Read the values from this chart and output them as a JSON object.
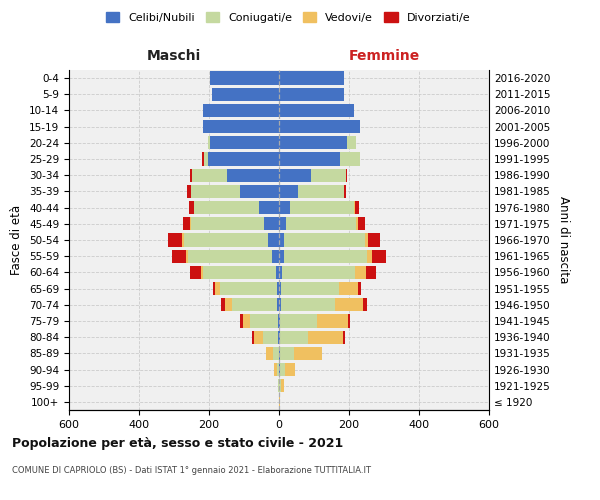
{
  "age_groups": [
    "100+",
    "95-99",
    "90-94",
    "85-89",
    "80-84",
    "75-79",
    "70-74",
    "65-69",
    "60-64",
    "55-59",
    "50-54",
    "45-49",
    "40-44",
    "35-39",
    "30-34",
    "25-29",
    "20-24",
    "15-19",
    "10-14",
    "5-9",
    "0-4"
  ],
  "birth_years": [
    "≤ 1920",
    "1921-1925",
    "1926-1930",
    "1931-1935",
    "1936-1940",
    "1941-1945",
    "1946-1950",
    "1951-1955",
    "1956-1960",
    "1961-1965",
    "1966-1970",
    "1971-1975",
    "1976-1980",
    "1981-1985",
    "1986-1990",
    "1991-1995",
    "1996-2000",
    "2001-2005",
    "2006-2010",
    "2011-2015",
    "2016-2020"
  ],
  "colors": {
    "celibi": "#4472C4",
    "coniugati": "#c5d9a0",
    "vedovi": "#f0c060",
    "divorziati": "#cc1111"
  },
  "male_celibi": [
    0,
    0,
    0,
    0,
    2,
    3,
    5,
    5,
    8,
    20,
    32,
    42,
    58,
    112,
    148,
    202,
    196,
    218,
    216,
    191,
    196
  ],
  "male_coniugati": [
    0,
    2,
    5,
    18,
    45,
    80,
    130,
    165,
    210,
    240,
    240,
    210,
    185,
    140,
    100,
    12,
    8,
    0,
    0,
    0,
    0
  ],
  "male_vedovi": [
    0,
    2,
    8,
    18,
    25,
    20,
    20,
    12,
    5,
    5,
    5,
    2,
    0,
    0,
    0,
    0,
    0,
    0,
    0,
    0,
    0
  ],
  "male_divorziati": [
    0,
    0,
    0,
    2,
    5,
    8,
    10,
    8,
    30,
    40,
    40,
    20,
    15,
    10,
    5,
    5,
    0,
    0,
    0,
    0,
    0
  ],
  "female_celibi": [
    0,
    0,
    2,
    2,
    3,
    3,
    5,
    5,
    8,
    15,
    15,
    20,
    30,
    55,
    90,
    175,
    195,
    230,
    215,
    185,
    185
  ],
  "female_coniugati": [
    0,
    5,
    15,
    40,
    80,
    105,
    155,
    165,
    210,
    235,
    230,
    200,
    185,
    130,
    100,
    55,
    25,
    0,
    0,
    0,
    0
  ],
  "female_vedovi": [
    2,
    8,
    30,
    80,
    100,
    90,
    80,
    55,
    30,
    15,
    8,
    5,
    2,
    0,
    0,
    0,
    0,
    0,
    0,
    0,
    0
  ],
  "female_divorziati": [
    0,
    0,
    0,
    2,
    5,
    5,
    10,
    10,
    30,
    40,
    35,
    20,
    12,
    5,
    5,
    2,
    0,
    0,
    0,
    0,
    0
  ],
  "xlim": 600,
  "title": "Popolazione per età, sesso e stato civile - 2021",
  "subtitle": "COMUNE DI CAPRIOLO (BS) - Dati ISTAT 1° gennaio 2021 - Elaborazione TUTTITALIA.IT",
  "maschi_label": "Maschi",
  "femmine_label": "Femmine",
  "ylabel_left": "Fasce di età",
  "ylabel_right": "Anni di nascita",
  "legend_labels": [
    "Celibi/Nubili",
    "Coniugati/e",
    "Vedovi/e",
    "Divorziati/e"
  ],
  "bg_color": "#f0f0f0",
  "grid_color": "#cccccc"
}
